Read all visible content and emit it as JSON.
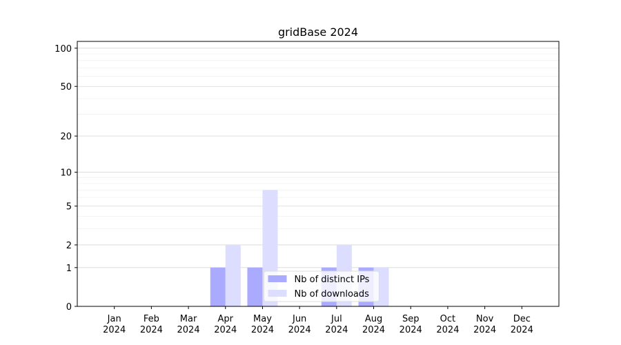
{
  "chart_data": {
    "type": "bar",
    "title": "gridBase 2024",
    "categories": [
      "Jan\n2024",
      "Feb\n2024",
      "Mar\n2024",
      "Apr\n2024",
      "May\n2024",
      "Jun\n2024",
      "Jul\n2024",
      "Aug\n2024",
      "Sep\n2024",
      "Oct\n2024",
      "Nov\n2024",
      "Dec\n2024"
    ],
    "series": [
      {
        "name": "Nb of distinct IPs",
        "color": "#aaaaff",
        "values": [
          0,
          0,
          0,
          1,
          1,
          0,
          1,
          1,
          0,
          0,
          0,
          0
        ]
      },
      {
        "name": "Nb of downloads",
        "color": "#ddddff",
        "values": [
          0,
          0,
          0,
          2,
          7,
          0,
          2,
          1,
          0,
          0,
          0,
          0
        ]
      }
    ],
    "yscale": "log1p",
    "ylim": [
      0,
      113
    ],
    "yticks": [
      0,
      1,
      2,
      5,
      10,
      20,
      50,
      100
    ],
    "yminor": [
      3,
      4,
      6,
      7,
      8,
      9,
      30,
      40,
      60,
      70,
      80,
      90
    ],
    "grid": true,
    "legend": "lower center"
  }
}
